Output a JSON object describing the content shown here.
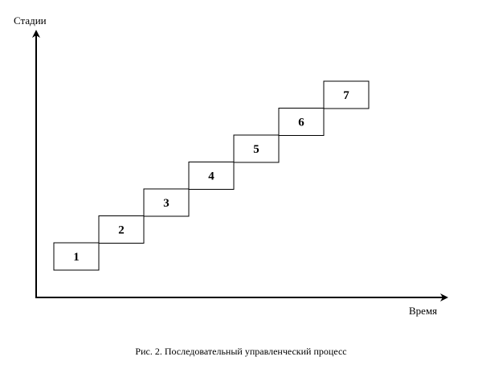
{
  "diagram": {
    "y_axis_label": "Стадии",
    "x_axis_label": "Время",
    "caption": "Рис. 2. Последовательный управленческий процесс",
    "stages": [
      {
        "label": "1"
      },
      {
        "label": "2"
      },
      {
        "label": "3"
      },
      {
        "label": "4"
      },
      {
        "label": "5"
      },
      {
        "label": "6"
      },
      {
        "label": "7"
      }
    ],
    "colors": {
      "line": "#000000",
      "background": "#ffffff"
    }
  }
}
